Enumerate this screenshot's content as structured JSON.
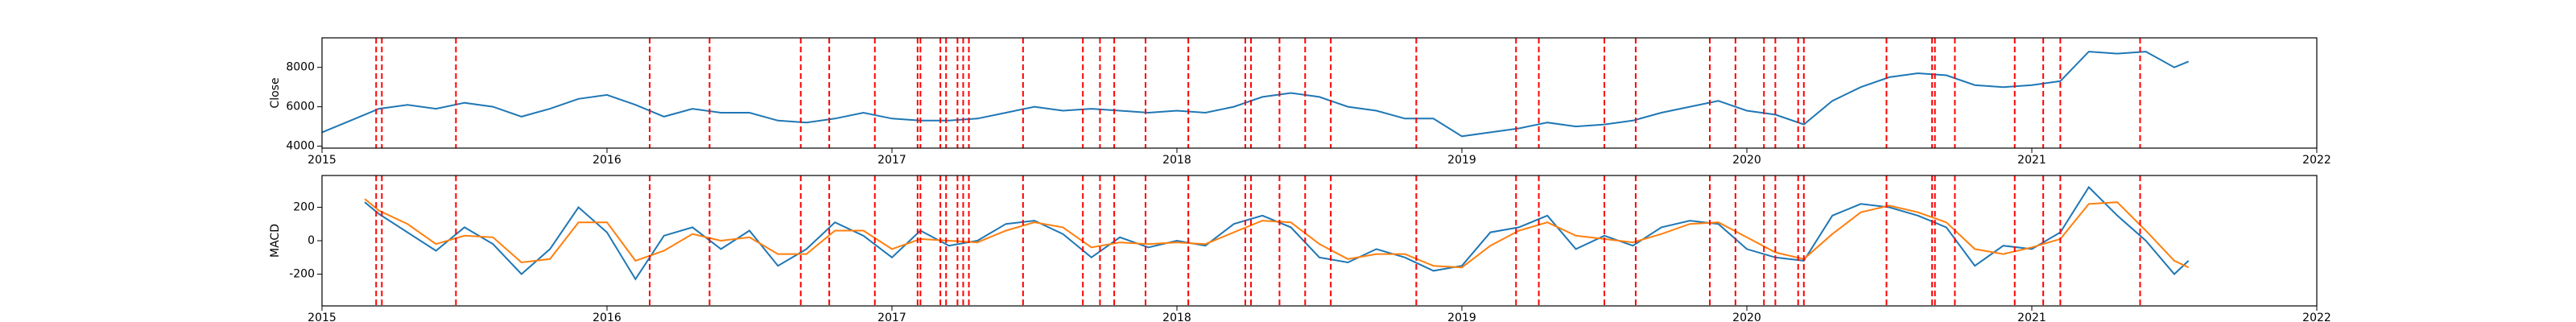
{
  "chart_data": [
    {
      "type": "line",
      "ylabel": "Close",
      "x": [
        2015.0,
        2015.1,
        2015.2,
        2015.3,
        2015.4,
        2015.5,
        2015.6,
        2015.7,
        2015.8,
        2015.9,
        2016.0,
        2016.1,
        2016.2,
        2016.3,
        2016.4,
        2016.5,
        2016.6,
        2016.7,
        2016.8,
        2016.9,
        2017.0,
        2017.1,
        2017.2,
        2017.3,
        2017.4,
        2017.5,
        2017.6,
        2017.7,
        2017.8,
        2017.9,
        2018.0,
        2018.1,
        2018.2,
        2018.3,
        2018.4,
        2018.5,
        2018.6,
        2018.7,
        2018.8,
        2018.9,
        2019.0,
        2019.1,
        2019.2,
        2019.3,
        2019.4,
        2019.5,
        2019.6,
        2019.7,
        2019.8,
        2019.9,
        2020.0,
        2020.1,
        2020.2,
        2020.3,
        2020.4,
        2020.5,
        2020.6,
        2020.7,
        2020.8,
        2020.9,
        2021.0,
        2021.1,
        2021.2,
        2021.3,
        2021.4,
        2021.5,
        2021.55
      ],
      "series": [
        {
          "color": "#1f77b4",
          "values": [
            4700,
            5300,
            5900,
            6100,
            5900,
            6200,
            6000,
            5500,
            5900,
            6400,
            6600,
            6100,
            5500,
            5900,
            5700,
            5700,
            5300,
            5200,
            5400,
            5700,
            5400,
            5300,
            5300,
            5400,
            5700,
            6000,
            5800,
            5900,
            5800,
            5700,
            5800,
            5700,
            6000,
            6500,
            6700,
            6500,
            6000,
            5800,
            5400,
            5400,
            4500,
            4700,
            4900,
            5200,
            5000,
            5100,
            5300,
            5700,
            6000,
            6300,
            5800,
            5600,
            5100,
            6300,
            7000,
            7500,
            7700,
            7600,
            7100,
            7000,
            7100,
            7300,
            8800,
            8700,
            8800,
            8000,
            8300
          ]
        }
      ],
      "xlim": [
        2015,
        2022
      ],
      "xticks": [
        2015,
        2016,
        2017,
        2018,
        2019,
        2020,
        2021,
        2022
      ],
      "ylim": [
        3900,
        9500
      ],
      "yticks": [
        4000,
        6000,
        8000
      ],
      "events": {
        "color": "#ff0000",
        "x": [
          2015.19,
          2015.21,
          2015.47,
          2016.15,
          2016.36,
          2016.68,
          2016.78,
          2016.94,
          2017.09,
          2017.1,
          2017.17,
          2017.19,
          2017.23,
          2017.25,
          2017.27,
          2017.46,
          2017.67,
          2017.73,
          2017.78,
          2017.89,
          2018.04,
          2018.24,
          2018.26,
          2018.36,
          2018.45,
          2018.54,
          2018.84,
          2019.19,
          2019.27,
          2019.5,
          2019.61,
          2019.87,
          2019.96,
          2020.06,
          2020.1,
          2020.18,
          2020.2,
          2020.49,
          2020.65,
          2020.66,
          2020.73,
          2020.94,
          2021.04,
          2021.1,
          2021.38
        ]
      }
    },
    {
      "type": "line",
      "ylabel": "MACD",
      "x": [
        2015.15,
        2015.2,
        2015.3,
        2015.4,
        2015.5,
        2015.6,
        2015.7,
        2015.8,
        2015.9,
        2016.0,
        2016.1,
        2016.2,
        2016.3,
        2016.4,
        2016.5,
        2016.6,
        2016.7,
        2016.8,
        2016.9,
        2017.0,
        2017.1,
        2017.2,
        2017.3,
        2017.4,
        2017.5,
        2017.6,
        2017.7,
        2017.8,
        2017.9,
        2018.0,
        2018.1,
        2018.2,
        2018.3,
        2018.4,
        2018.5,
        2018.6,
        2018.7,
        2018.8,
        2018.9,
        2019.0,
        2019.1,
        2019.2,
        2019.3,
        2019.4,
        2019.5,
        2019.6,
        2019.7,
        2019.8,
        2019.9,
        2020.0,
        2020.1,
        2020.2,
        2020.3,
        2020.4,
        2020.5,
        2020.6,
        2020.7,
        2020.8,
        2020.9,
        2021.0,
        2021.1,
        2021.2,
        2021.3,
        2021.4,
        2021.5,
        2021.55
      ],
      "series": [
        {
          "color": "#1f77b4",
          "values": [
            230,
            160,
            50,
            -60,
            80,
            -20,
            -200,
            -50,
            200,
            50,
            -230,
            30,
            80,
            -50,
            60,
            -150,
            -50,
            110,
            30,
            -100,
            60,
            -30,
            0,
            100,
            120,
            40,
            -100,
            20,
            -40,
            0,
            -30,
            100,
            150,
            80,
            -100,
            -130,
            -50,
            -100,
            -180,
            -150,
            50,
            80,
            150,
            -50,
            30,
            -30,
            80,
            120,
            100,
            -50,
            -100,
            -120,
            150,
            220,
            200,
            150,
            80,
            -150,
            -30,
            -50,
            50,
            320,
            150,
            0,
            -200,
            -120
          ]
        },
        {
          "color": "#ff7f0e",
          "values": [
            250,
            180,
            100,
            -20,
            30,
            20,
            -130,
            -110,
            110,
            110,
            -120,
            -60,
            40,
            0,
            20,
            -80,
            -80,
            60,
            60,
            -50,
            10,
            0,
            -10,
            60,
            110,
            80,
            -40,
            -10,
            -20,
            -10,
            -20,
            50,
            120,
            110,
            -20,
            -110,
            -80,
            -80,
            -150,
            -160,
            -30,
            60,
            110,
            30,
            10,
            -10,
            40,
            100,
            110,
            20,
            -70,
            -110,
            40,
            170,
            210,
            170,
            110,
            -50,
            -80,
            -40,
            10,
            220,
            230,
            60,
            -120,
            -160
          ]
        }
      ],
      "xlim": [
        2015,
        2022
      ],
      "xticks": [
        2015,
        2016,
        2017,
        2018,
        2019,
        2020,
        2021,
        2022
      ],
      "ylim": [
        -390,
        390
      ],
      "yticks": [
        -200,
        0,
        200
      ],
      "events": {
        "color": "#ff0000",
        "x": [
          2015.19,
          2015.21,
          2015.47,
          2016.15,
          2016.36,
          2016.68,
          2016.78,
          2016.94,
          2017.09,
          2017.1,
          2017.17,
          2017.19,
          2017.23,
          2017.25,
          2017.27,
          2017.46,
          2017.67,
          2017.73,
          2017.78,
          2017.89,
          2018.04,
          2018.24,
          2018.26,
          2018.36,
          2018.45,
          2018.54,
          2018.84,
          2019.19,
          2019.27,
          2019.5,
          2019.61,
          2019.87,
          2019.96,
          2020.06,
          2020.1,
          2020.18,
          2020.2,
          2020.49,
          2020.65,
          2020.66,
          2020.73,
          2020.94,
          2021.04,
          2021.1,
          2021.38
        ]
      }
    }
  ]
}
